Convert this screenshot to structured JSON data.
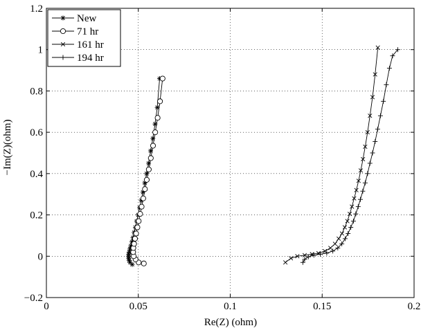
{
  "chart_data": {
    "type": "line",
    "title": "",
    "xlabel": "Re(Z) (ohm)",
    "ylabel": "−Im(Z)(ohm)",
    "xlim": [
      0,
      0.2
    ],
    "ylim": [
      -0.2,
      1.2
    ],
    "xticks": [
      0,
      0.05,
      0.1,
      0.15,
      0.2
    ],
    "xtick_labels": [
      "0",
      "0.05",
      "0.1",
      "0.15",
      "0.2"
    ],
    "yticks": [
      -0.2,
      0,
      0.2,
      0.4,
      0.6,
      0.8,
      1,
      1.2
    ],
    "ytick_labels": [
      "−0.2",
      "0",
      "0.2",
      "0.4",
      "0.6",
      "0.8",
      "1",
      "1.2"
    ],
    "grid": true,
    "grid_style": "dotted",
    "legend_position": "top-left",
    "line_color": "#000000",
    "series": [
      {
        "name": "New",
        "marker": "asterisk",
        "x": [
          0.0467,
          0.0455,
          0.045,
          0.0448,
          0.0447,
          0.0448,
          0.045,
          0.0454,
          0.0459,
          0.0465,
          0.0471,
          0.0477,
          0.0484,
          0.0491,
          0.0499,
          0.0507,
          0.0516,
          0.0525,
          0.0535,
          0.0545,
          0.0556,
          0.0567,
          0.0579,
          0.0591,
          0.0603,
          0.0616
        ],
        "y": [
          -0.04,
          -0.03,
          -0.02,
          -0.01,
          0.0,
          0.01,
          0.02,
          0.035,
          0.05,
          0.07,
          0.09,
          0.115,
          0.14,
          0.17,
          0.2,
          0.235,
          0.27,
          0.31,
          0.355,
          0.4,
          0.45,
          0.51,
          0.57,
          0.64,
          0.72,
          0.86
        ]
      },
      {
        "name": "71 hr",
        "marker": "circle",
        "x": [
          0.053,
          0.0502,
          0.0485,
          0.0475,
          0.0472,
          0.0473,
          0.0477,
          0.0482,
          0.0488,
          0.0495,
          0.0502,
          0.051,
          0.0518,
          0.0527,
          0.0536,
          0.0546,
          0.0557,
          0.0568,
          0.058,
          0.0592,
          0.0605,
          0.0618,
          0.0632
        ],
        "y": [
          -0.035,
          -0.03,
          -0.015,
          0.0,
          0.02,
          0.04,
          0.06,
          0.085,
          0.11,
          0.14,
          0.17,
          0.205,
          0.24,
          0.28,
          0.325,
          0.37,
          0.42,
          0.475,
          0.535,
          0.6,
          0.67,
          0.75,
          0.86
        ]
      },
      {
        "name": "161 hr",
        "marker": "x",
        "x": [
          0.13,
          0.133,
          0.1365,
          0.1405,
          0.1445,
          0.148,
          0.1515,
          0.1545,
          0.157,
          0.159,
          0.1608,
          0.1623,
          0.1637,
          0.165,
          0.1662,
          0.1674,
          0.1686,
          0.1698,
          0.171,
          0.1722,
          0.1734,
          0.1747,
          0.176,
          0.1774,
          0.1788,
          0.1803
        ],
        "y": [
          -0.03,
          -0.01,
          0.0,
          0.005,
          0.01,
          0.015,
          0.025,
          0.04,
          0.06,
          0.085,
          0.11,
          0.14,
          0.17,
          0.205,
          0.24,
          0.28,
          0.32,
          0.365,
          0.415,
          0.47,
          0.53,
          0.6,
          0.68,
          0.77,
          0.88,
          1.01
        ]
      },
      {
        "name": "194 hr",
        "marker": "plus",
        "x": [
          0.1395,
          0.1405,
          0.1425,
          0.1455,
          0.149,
          0.1525,
          0.1558,
          0.1585,
          0.1607,
          0.1625,
          0.1641,
          0.1656,
          0.167,
          0.1683,
          0.1696,
          0.1708,
          0.1721,
          0.1734,
          0.1747,
          0.176,
          0.1774,
          0.1788,
          0.1802,
          0.1817,
          0.1833,
          0.1849,
          0.1866,
          0.1883,
          0.1911
        ],
        "y": [
          -0.03,
          -0.015,
          -0.003,
          0.005,
          0.01,
          0.015,
          0.025,
          0.04,
          0.06,
          0.085,
          0.11,
          0.14,
          0.17,
          0.205,
          0.24,
          0.275,
          0.315,
          0.355,
          0.4,
          0.45,
          0.5,
          0.555,
          0.615,
          0.68,
          0.75,
          0.83,
          0.91,
          0.97,
          1.0
        ]
      }
    ]
  }
}
